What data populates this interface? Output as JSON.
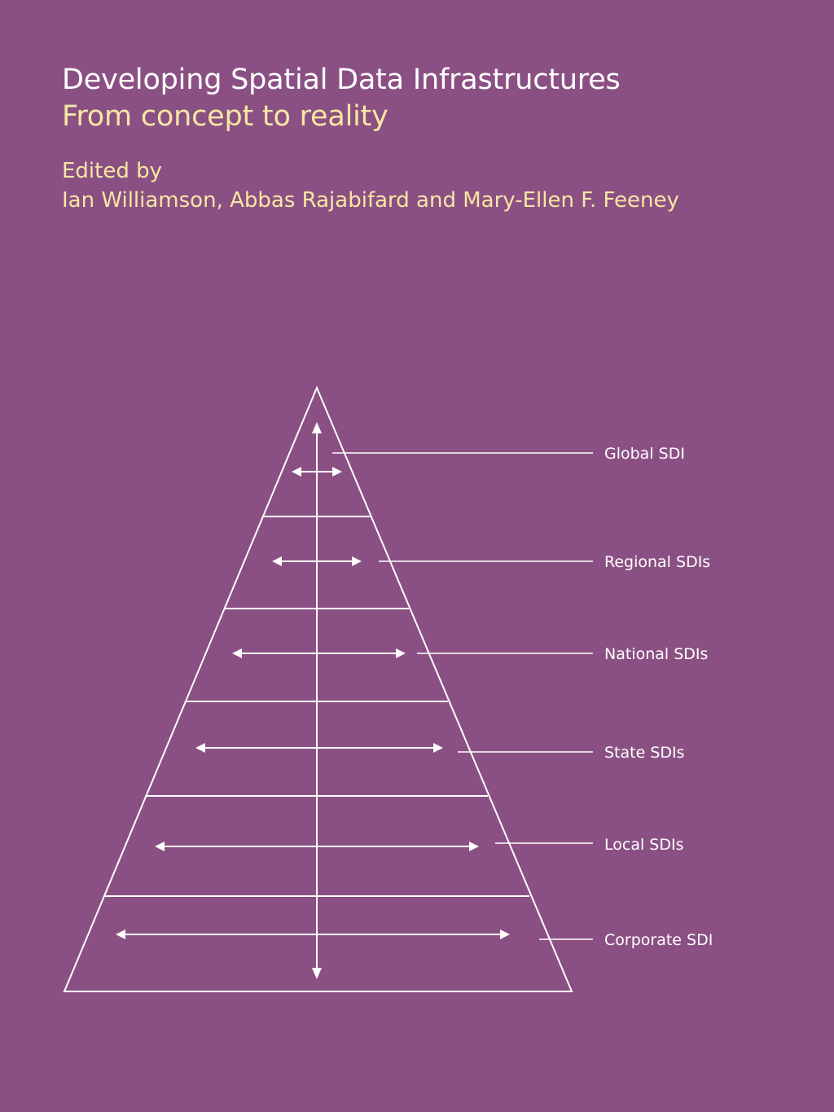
{
  "book": {
    "title": "Developing Spatial Data Infrastructures",
    "subtitle": "From concept to reality",
    "edited_by_label": "Edited by",
    "editors": "Ian Williamson, Abbas Rajabifard and Mary-Ellen F. Feeney"
  },
  "diagram": {
    "tiers": [
      {
        "label": "Global SDI"
      },
      {
        "label": "Regional SDIs"
      },
      {
        "label": "National SDIs"
      },
      {
        "label": "State SDIs"
      },
      {
        "label": "Local SDIs"
      },
      {
        "label": "Corporate SDI"
      }
    ]
  },
  "colors": {
    "background": "#8b5083",
    "title": "#ffffff",
    "accent": "#f6e7a4",
    "lines": "#ffffff"
  }
}
